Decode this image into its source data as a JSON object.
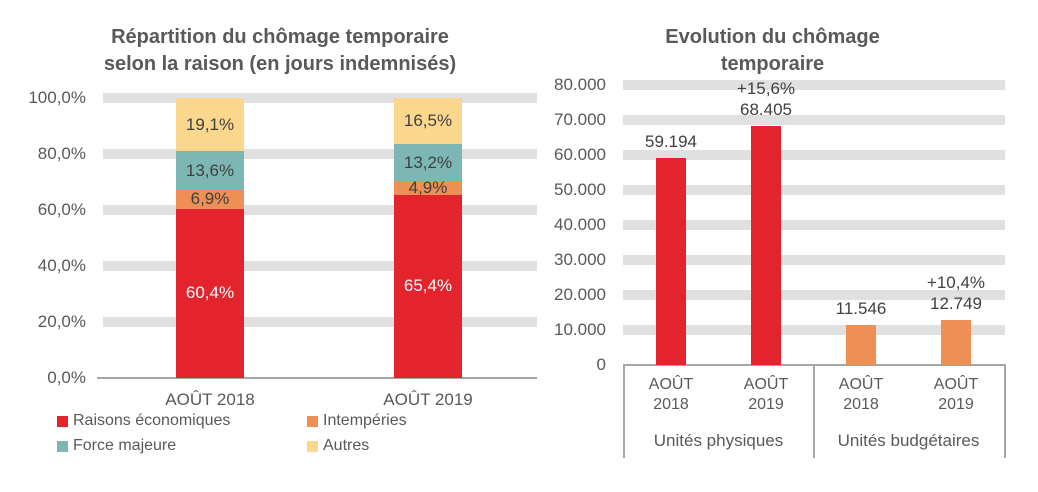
{
  "page": {
    "background": "#FFFFFF"
  },
  "colors": {
    "red": "#E4242C",
    "orange": "#EE8F55",
    "teal": "#7CB7B3",
    "yellow": "#FBD78D",
    "gridline_band": "#E0E0E0",
    "axis_line": "#A6A6A6",
    "text_axis": "#595959",
    "text_label": "#404040",
    "text_label_on_red": "#FFFFFF"
  },
  "left_chart": {
    "title_lines": [
      "Répartition du chômage temporaire",
      "selon la raison (en jours indemnisés)"
    ],
    "legend": [
      {
        "label": "Raisons économiques",
        "color": "#E4242C"
      },
      {
        "label": "Intempéries",
        "color": "#EE8F55"
      },
      {
        "label": "Force majeure",
        "color": "#7CB7B3"
      },
      {
        "label": "Autres",
        "color": "#FBD78D"
      }
    ]
  },
  "right_chart": {
    "title_lines": [
      "Evolution du chômage",
      "temporaire"
    ]
  },
  "chart_data": [
    {
      "type": "bar",
      "subtype": "100%-stacked-column",
      "title": "Répartition du chômage temporaire selon la raison (en jours indemnisés)",
      "categories": [
        "AOÛT 2018",
        "AOÛT 2019"
      ],
      "series": [
        {
          "name": "Raisons économiques",
          "color": "#E4242C",
          "values_pct": [
            60.4,
            65.4
          ],
          "labels": [
            "60,4%",
            "65,4%"
          ]
        },
        {
          "name": "Intempéries",
          "color": "#EE8F55",
          "values_pct": [
            6.9,
            4.9
          ],
          "labels": [
            "6,9%",
            "4,9%"
          ]
        },
        {
          "name": "Force majeure",
          "color": "#7CB7B3",
          "values_pct": [
            13.6,
            13.2
          ],
          "labels": [
            "13,6%",
            "13,2%"
          ]
        },
        {
          "name": "Autres",
          "color": "#FBD78D",
          "values_pct": [
            19.1,
            16.5
          ],
          "labels": [
            "19,1%",
            "16,5%"
          ]
        }
      ],
      "ylim": [
        0,
        100
      ],
      "y_ticks": [
        {
          "value": 100,
          "label": "100,0%"
        },
        {
          "value": 80,
          "label": "80,0%"
        },
        {
          "value": 60,
          "label": "60,0%"
        },
        {
          "value": 40,
          "label": "40,0%"
        },
        {
          "value": 20,
          "label": "20,0%"
        },
        {
          "value": 0,
          "label": "0,0%"
        }
      ],
      "grid": "thick-horizontal-bands",
      "legend_position": "bottom"
    },
    {
      "type": "bar",
      "subtype": "grouped-column",
      "title": "Evolution du chômage temporaire",
      "ylim": [
        0,
        80000
      ],
      "y_ticks": [
        {
          "value": 80000,
          "label": "80.000"
        },
        {
          "value": 70000,
          "label": "70.000"
        },
        {
          "value": 60000,
          "label": "60.000"
        },
        {
          "value": 50000,
          "label": "50.000"
        },
        {
          "value": 40000,
          "label": "40.000"
        },
        {
          "value": 30000,
          "label": "30.000"
        },
        {
          "value": 20000,
          "label": "20.000"
        },
        {
          "value": 10000,
          "label": "10.000"
        },
        {
          "value": 0,
          "label": "0"
        }
      ],
      "groups": [
        {
          "name": "Unités physiques",
          "color": "#E4242C",
          "bars": [
            {
              "category": "AOÛT 2018",
              "value": 59194,
              "label": "59.194",
              "delta": null
            },
            {
              "category": "AOÛT 2019",
              "value": 68405,
              "label": "68.405",
              "delta": "+15,6%"
            }
          ]
        },
        {
          "name": "Unités budgétaires",
          "color": "#EE8F55",
          "bars": [
            {
              "category": "AOÛT 2018",
              "value": 11546,
              "label": "11.546",
              "delta": null
            },
            {
              "category": "AOÛT 2019",
              "value": 12749,
              "label": "12.749",
              "delta": "+10,4%"
            }
          ]
        }
      ],
      "grid": "thick-horizontal-bands"
    }
  ]
}
